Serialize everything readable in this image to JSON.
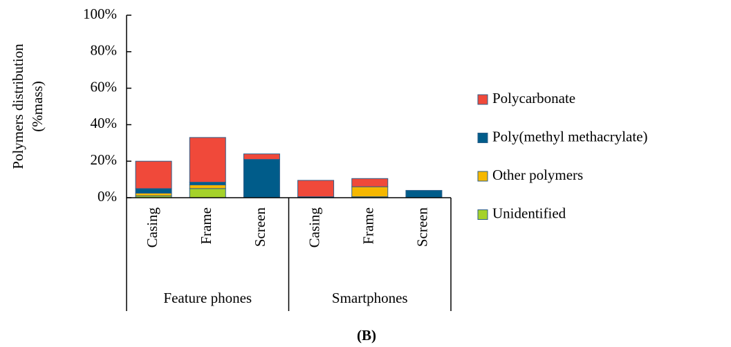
{
  "chart_data": {
    "type": "stacked_bar",
    "y_label": [
      "Polymers distribution",
      "(%mass)"
    ],
    "categories": [
      "Casing",
      "Frame",
      "Screen",
      "Casing",
      "Frame",
      "Screen"
    ],
    "groups": [
      "Feature phones",
      "Smartphones"
    ],
    "series": [
      {
        "name": "Unidentified",
        "color": "#a5d22a",
        "values": [
          1,
          5,
          0,
          0,
          0.5,
          0
        ]
      },
      {
        "name": "Other polymers",
        "color": "#f5b800",
        "values": [
          1.5,
          2,
          0,
          0,
          5.5,
          0
        ]
      },
      {
        "name": "Poly(methyl methacrylate)",
        "color": "#005c8a",
        "values": [
          2.5,
          1.5,
          21,
          0.5,
          0,
          4
        ]
      },
      {
        "name": "Polycarbonate",
        "color": "#f0493a",
        "values": [
          15,
          24.5,
          3,
          9,
          4.5,
          0
        ]
      }
    ],
    "ylim": [
      0,
      100
    ],
    "yticks": [
      {
        "value": 0,
        "label": "0%"
      },
      {
        "value": 20,
        "label": "20%"
      },
      {
        "value": 40,
        "label": "40%"
      },
      {
        "value": 60,
        "label": "60%"
      },
      {
        "value": 80,
        "label": "80%"
      },
      {
        "value": 100,
        "label": "100%"
      }
    ],
    "legend": "right",
    "caption": "(B)"
  }
}
